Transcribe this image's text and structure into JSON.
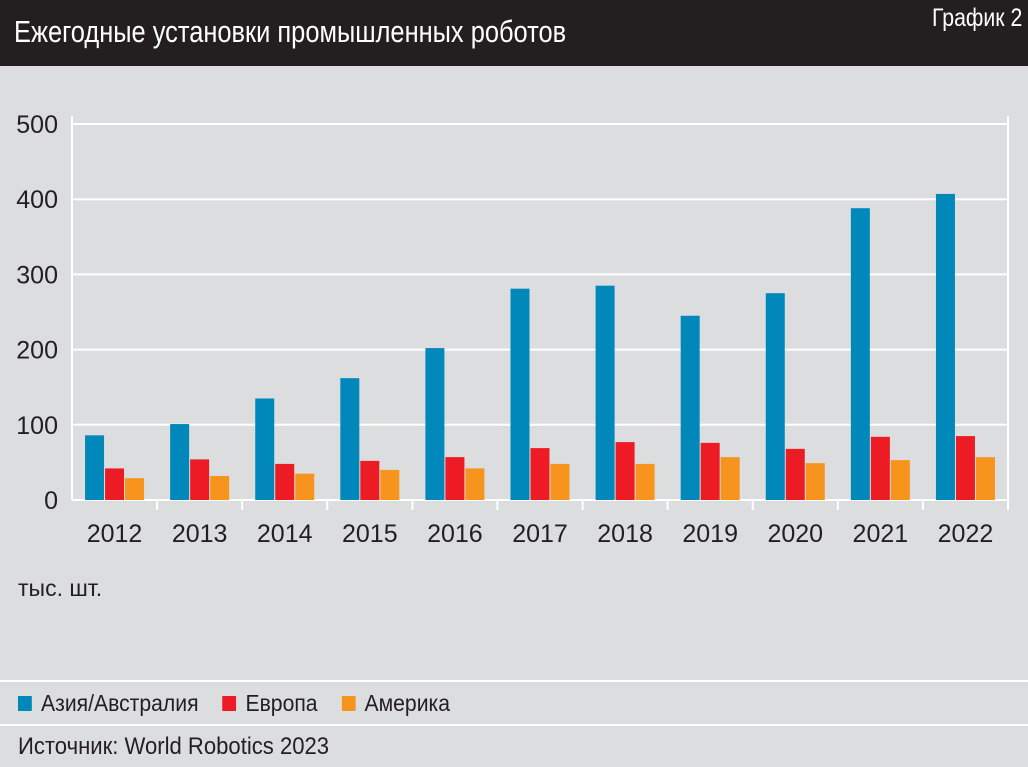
{
  "header": {
    "title": "Ежегодные установки промышленных роботов",
    "badge": "График 2"
  },
  "chart_data": {
    "type": "bar",
    "title": "Ежегодные установки промышленных роботов",
    "unit_label": "тыс. шт.",
    "categories": [
      "2012",
      "2013",
      "2014",
      "2015",
      "2016",
      "2017",
      "2018",
      "2019",
      "2020",
      "2021",
      "2022"
    ],
    "series": [
      {
        "name": "Азия/Австралия",
        "color": "#0088bb",
        "values": [
          86,
          101,
          135,
          162,
          202,
          281,
          285,
          245,
          275,
          388,
          407
        ]
      },
      {
        "name": "Европа",
        "color": "#ed1c24",
        "values": [
          42,
          54,
          48,
          52,
          57,
          69,
          77,
          76,
          68,
          84,
          85
        ]
      },
      {
        "name": "Америка",
        "color": "#f7941d",
        "values": [
          29,
          32,
          35,
          40,
          42,
          48,
          48,
          57,
          49,
          53,
          57
        ]
      }
    ],
    "ylim": [
      0,
      500
    ],
    "yticks": [
      "0",
      "100",
      "200",
      "300",
      "400",
      "500"
    ],
    "grid": true,
    "legend": "bottom"
  },
  "source": "Источник: World Robotics 2023"
}
